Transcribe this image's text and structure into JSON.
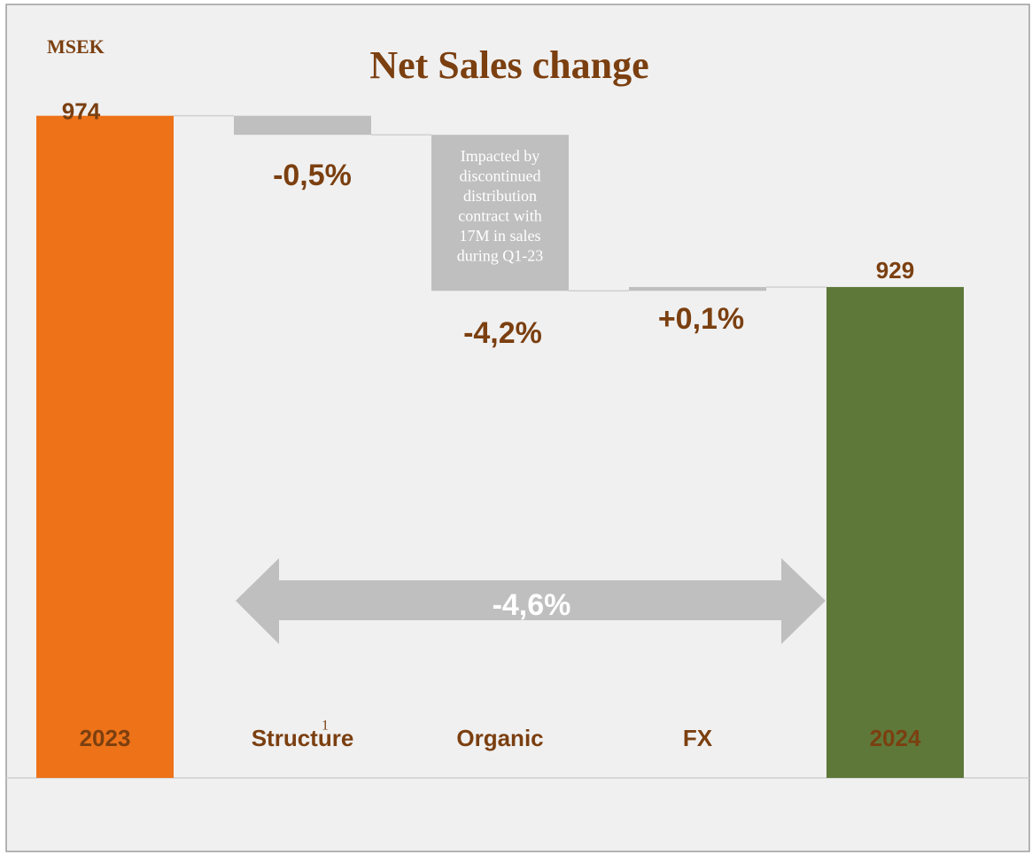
{
  "chart_data": {
    "type": "waterfall",
    "title": "Net Sales change",
    "y_unit": "MSEK",
    "categories": [
      "2023",
      "Structure",
      "Organic",
      "FX",
      "2024"
    ],
    "footnote_mark": "1",
    "values": [
      974,
      -5,
      -41,
      1,
      929
    ],
    "bar_kinds": [
      "total",
      "delta",
      "delta",
      "delta",
      "total"
    ],
    "colors": [
      "#ED7218",
      "#BFBFBF",
      "#BFBFBF",
      "#BFBFBF",
      "#5E783A"
    ],
    "percent_labels": [
      "-0,5%",
      "-4,2%",
      "+0,1%"
    ],
    "total_change_label": "-4,6%",
    "annotation_lines": [
      "Impacted by",
      "discontinued",
      "distribution",
      "contract with",
      "17M in sales",
      "during Q1-23"
    ],
    "ylim": [
      800,
      1000
    ]
  }
}
